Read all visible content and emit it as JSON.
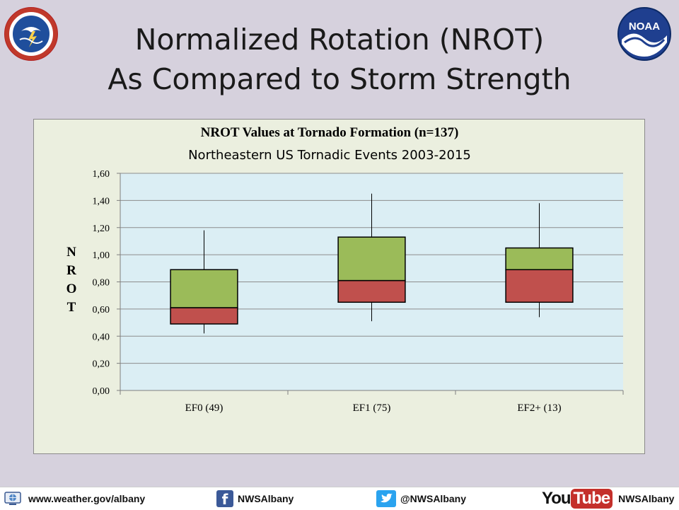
{
  "slide": {
    "title_line1": "Normalized Rotation (NROT)",
    "title_line2": "As Compared to Storm Strength"
  },
  "logos": {
    "left": "NATIONAL WEATHER SERVICE",
    "right": "NOAA"
  },
  "chart_data": {
    "type": "box",
    "title": "NROT Values at Tornado Formation (n=137)",
    "subtitle": "Northeastern US Tornadic Events 2003-2015",
    "ylabel": "NROT",
    "ylim": [
      0,
      1.6
    ],
    "yticks": [
      "0,00",
      "0,20",
      "0,40",
      "0,60",
      "0,80",
      "1,00",
      "1,20",
      "1,40",
      "1,60"
    ],
    "grid": true,
    "categories": [
      "EF0 (49)",
      "EF1 (75)",
      "EF2+ (13)"
    ],
    "boxes": [
      {
        "min": 0.42,
        "q1": 0.49,
        "median": 0.61,
        "q3": 0.89,
        "max": 1.18
      },
      {
        "min": 0.51,
        "q1": 0.65,
        "median": 0.81,
        "q3": 1.13,
        "max": 1.45
      },
      {
        "min": 0.54,
        "q1": 0.65,
        "median": 0.89,
        "q3": 1.05,
        "max": 1.38
      }
    ],
    "colors": {
      "lower_box": "#c0504d",
      "upper_box": "#9bbb59",
      "plot_bg": "#dbeef4",
      "panel_bg": "#ebefdf"
    }
  },
  "footer": {
    "website": "www.weather.gov/albany",
    "facebook": "NWSAlbany",
    "twitter": "@NWSAlbany",
    "youtube_word1": "You",
    "youtube_word2": "Tube",
    "youtube_handle": "NWSAlbany"
  }
}
